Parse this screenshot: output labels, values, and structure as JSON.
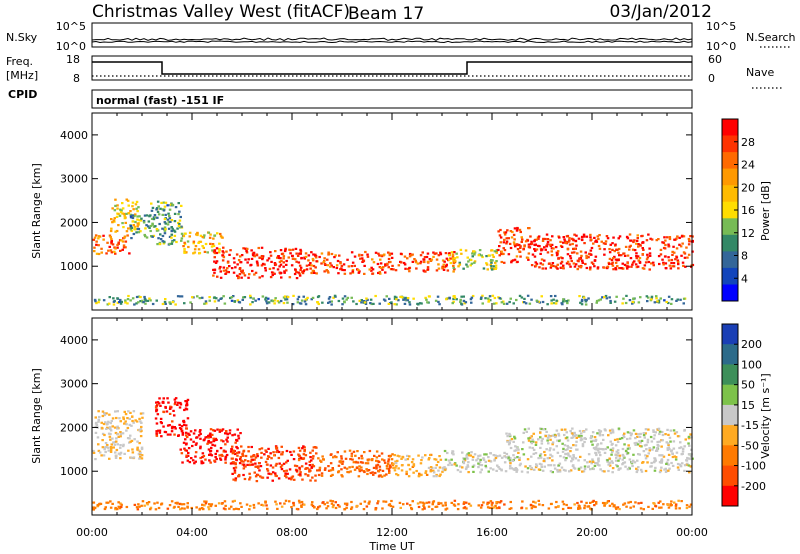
{
  "header": {
    "station": "Christmas Valley West (fitACF)",
    "beam": "Beam 17",
    "date": "03/Jan/2012"
  },
  "left_labels": {
    "nsky": "N.Sky",
    "freq_line1": "Freq.",
    "freq_line2": "[MHz]",
    "cpid": "CPID"
  },
  "right_labels": {
    "nsearch": "N.Search",
    "nave": "Nave"
  },
  "cpid_text": "normal (fast) -151 IF",
  "chart_data": [
    {
      "type": "line",
      "name": "noise",
      "y_tick_labels": [
        "10^5",
        "10^0"
      ],
      "right_tick_labels": [
        "10^5",
        "10^0"
      ]
    },
    {
      "type": "line",
      "name": "frequency-nave",
      "y_tick_labels": [
        "18",
        "8"
      ],
      "right_tick_labels": [
        "60",
        "0"
      ],
      "frequency_steps": [
        {
          "x": [
            0.0,
            2.8
          ],
          "y": 18
        },
        {
          "x": [
            2.8,
            15.0
          ],
          "y": 8
        },
        {
          "x": [
            15.0,
            24.0
          ],
          "y": 18
        }
      ],
      "nave_dotted": true
    },
    {
      "type": "heatmap",
      "name": "power",
      "ylabel": "Slant Range [km]",
      "ylim": [
        0,
        4500
      ],
      "y_ticks": [
        "4000",
        "3000",
        "2000",
        "1000"
      ],
      "xlim": [
        0,
        24
      ],
      "colorbar": {
        "label": "Power [dB]",
        "ticks": [
          "28",
          "24",
          "20",
          "16",
          "12",
          "8",
          "4"
        ],
        "colors": [
          "#ff0000",
          "#ff3300",
          "#ff6a00",
          "#ff9900",
          "#ffbb00",
          "#ffdd00",
          "#77bb55",
          "#338866",
          "#336699",
          "#1144bb",
          "#0000ff"
        ]
      },
      "scatter_bands": [
        {
          "t": [
            0.0,
            1.5
          ],
          "r": [
            1300,
            1750
          ],
          "level": 0.8
        },
        {
          "t": [
            0.7,
            1.9
          ],
          "r": [
            1800,
            2550
          ],
          "level": 0.55
        },
        {
          "t": [
            1.5,
            2.6
          ],
          "r": [
            1650,
            2200
          ],
          "level": 0.35
        },
        {
          "t": [
            2.3,
            3.6
          ],
          "r": [
            1500,
            2500
          ],
          "level": 0.35
        },
        {
          "t": [
            3.6,
            5.2
          ],
          "r": [
            1300,
            1800
          ],
          "level": 0.6
        },
        {
          "t": [
            4.8,
            8.5
          ],
          "r": [
            750,
            1450
          ],
          "level": 0.92
        },
        {
          "t": [
            8.5,
            12.0
          ],
          "r": [
            850,
            1350
          ],
          "level": 0.85
        },
        {
          "t": [
            12.0,
            14.5
          ],
          "r": [
            900,
            1350
          ],
          "level": 0.85
        },
        {
          "t": [
            14.2,
            16.2
          ],
          "r": [
            950,
            1400
          ],
          "level": 0.45
        },
        {
          "t": [
            16.2,
            17.5
          ],
          "r": [
            1100,
            1900
          ],
          "level": 0.85
        },
        {
          "t": [
            17.5,
            24.0
          ],
          "r": [
            950,
            1750
          ],
          "level": 0.9
        },
        {
          "t": [
            0.0,
            24.0
          ],
          "r": [
            150,
            350
          ],
          "level": 0.35
        }
      ]
    },
    {
      "type": "heatmap",
      "name": "velocity",
      "ylabel": "Slant Range [km]",
      "xlabel": "Time UT",
      "ylim": [
        0,
        4500
      ],
      "y_ticks": [
        "4000",
        "3000",
        "2000",
        "1000"
      ],
      "x_ticks": [
        "00:00",
        "04:00",
        "08:00",
        "12:00",
        "16:00",
        "20:00",
        "00:00"
      ],
      "xlim": [
        0,
        24
      ],
      "colorbar": {
        "label": "Velocity [m s⁻¹]",
        "ticks": [
          "200",
          "100",
          "50",
          "15",
          "-15",
          "-50",
          "-100",
          "-200"
        ],
        "colors": [
          "#1a3fb5",
          "#2c6b8a",
          "#3d8f59",
          "#7dc24a",
          "#c8c8c8",
          "#ffaa22",
          "#ff7a00",
          "#ff4d00",
          "#ff0000"
        ]
      },
      "scatter_bands": [
        {
          "t": [
            0.0,
            2.0
          ],
          "r": [
            1300,
            2400
          ],
          "level": -0.1
        },
        {
          "t": [
            2.5,
            3.8
          ],
          "r": [
            1800,
            2700
          ],
          "level": -0.9
        },
        {
          "t": [
            3.5,
            6.0
          ],
          "r": [
            1200,
            2000
          ],
          "level": -0.85
        },
        {
          "t": [
            5.5,
            9.0
          ],
          "r": [
            800,
            1600
          ],
          "level": -0.7
        },
        {
          "t": [
            9.0,
            12.0
          ],
          "r": [
            900,
            1500
          ],
          "level": -0.55
        },
        {
          "t": [
            12.0,
            14.0
          ],
          "r": [
            900,
            1400
          ],
          "level": -0.2
        },
        {
          "t": [
            14.0,
            16.5
          ],
          "r": [
            1000,
            1500
          ],
          "level": 0.0
        },
        {
          "t": [
            16.5,
            24.0
          ],
          "r": [
            1000,
            2000
          ],
          "level": 0.0
        },
        {
          "t": [
            0.0,
            24.0
          ],
          "r": [
            150,
            350
          ],
          "level": -0.45
        }
      ]
    }
  ]
}
